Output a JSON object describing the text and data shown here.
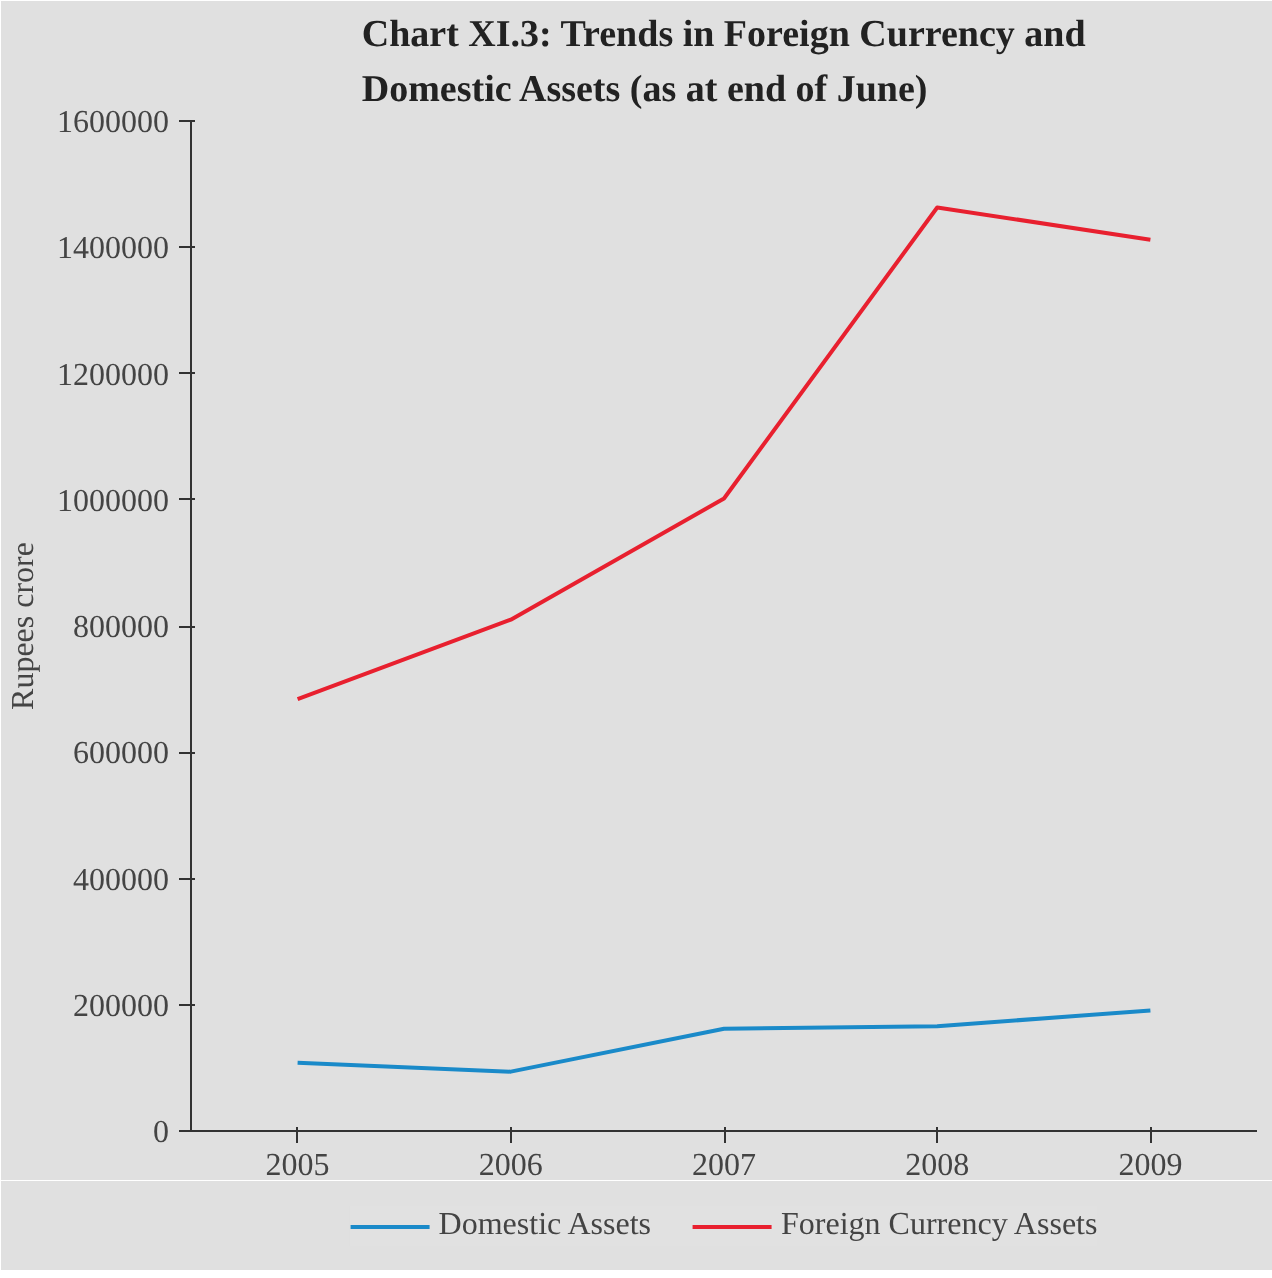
{
  "chart_data": {
    "type": "line",
    "title": "Chart XI.3: Trends in Foreign Currency and\nDomestic Assets (as at end of June)",
    "ylabel": "Rupees crore",
    "categories": [
      "2005",
      "2006",
      "2007",
      "2008",
      "2009"
    ],
    "series": [
      {
        "name": "Domestic Assets",
        "color": "#1a8ac9",
        "values": [
          108000,
          94000,
          162000,
          166000,
          191000
        ]
      },
      {
        "name": "Foreign Currency Assets",
        "color": "#e8202f",
        "values": [
          684000,
          810000,
          1002000,
          1463000,
          1412000
        ]
      }
    ],
    "ylim": [
      0,
      1600000
    ],
    "yticks": [
      0,
      200000,
      400000,
      600000,
      800000,
      1000000,
      1200000,
      1400000,
      1600000
    ],
    "grid": false,
    "legend": "bottom",
    "marker": "none",
    "line_style": "solid"
  }
}
